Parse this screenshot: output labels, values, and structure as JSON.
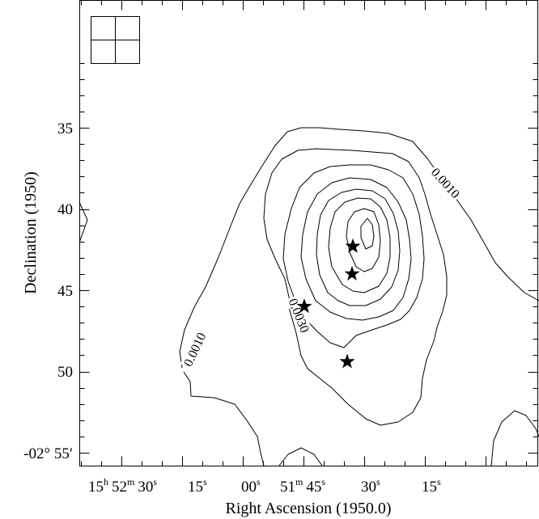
{
  "chart_data": {
    "type": "contour",
    "title": "",
    "xlabel": "Right Ascension (1950.0)",
    "ylabel": "Declination (1950)",
    "x_axis": {
      "unit": "RA hh mm ss",
      "tick_labels": [
        {
          "h": "15",
          "m": "52",
          "s": "30"
        },
        {
          "s": "15"
        },
        {
          "s": "00"
        },
        {
          "m": "51",
          "s": "45"
        },
        {
          "s": "30"
        },
        {
          "s": "15"
        }
      ]
    },
    "y_axis": {
      "unit": "Dec arcmin past -02°",
      "ylim": [
        55.8,
        30.8
      ],
      "tick_labels": [
        {
          "value": 35,
          "text": "35"
        },
        {
          "value": 40,
          "text": "40"
        },
        {
          "value": 45,
          "text": "45"
        },
        {
          "value": 50,
          "text": "50"
        },
        {
          "value": 55,
          "text": "-02° 55′"
        }
      ]
    },
    "contour_labels": [
      "0.0010",
      "0.0010",
      "0.0030"
    ],
    "stars": [
      {
        "ra_s": 32.8,
        "dec_arcmin": 42.3
      },
      {
        "ra_s": 33.0,
        "dec_arcmin": 44.0
      },
      {
        "ra_s": 44.8,
        "dec_arcmin": 46.0
      },
      {
        "ra_s": 34.2,
        "dec_arcmin": 49.4
      }
    ],
    "beam_box": true,
    "colors": {
      "line": "#000000",
      "background": "#ffffff"
    }
  }
}
